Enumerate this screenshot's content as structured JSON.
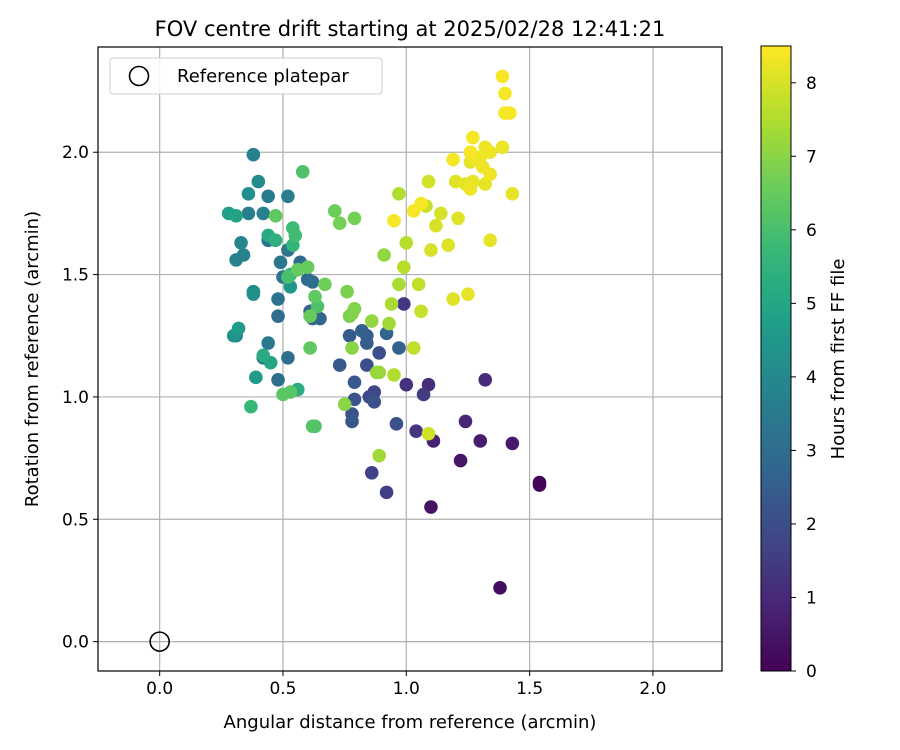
{
  "chart_data": {
    "type": "scatter",
    "title": "FOV centre drift starting at 2025/02/28 12:41:21",
    "xlabel": "Angular distance from reference (arcmin)",
    "ylabel": "Rotation from reference (arcmin)",
    "xlim": [
      -0.25,
      2.28
    ],
    "ylim": [
      -0.12,
      2.43
    ],
    "xticks": [
      0.0,
      0.5,
      1.0,
      1.5,
      2.0
    ],
    "yticks": [
      0.0,
      0.5,
      1.0,
      1.5,
      2.0
    ],
    "xtick_labels": [
      "0.0",
      "0.5",
      "1.0",
      "1.5",
      "2.0"
    ],
    "ytick_labels": [
      "0.0",
      "0.5",
      "1.0",
      "1.5",
      "2.0"
    ],
    "grid": true,
    "legend": {
      "position": "top-left",
      "entries": [
        "Reference platepar"
      ]
    },
    "reference_point": {
      "x": 0.0,
      "y": 0.0,
      "label": "Reference platepar"
    },
    "colorbar": {
      "label": "Hours from first FF file",
      "colormap": "viridis",
      "range": [
        0,
        8.5
      ],
      "ticks": [
        0,
        1,
        2,
        3,
        4,
        5,
        6,
        7,
        8
      ],
      "tick_labels": [
        "0",
        "1",
        "2",
        "3",
        "4",
        "5",
        "6",
        "7",
        "8"
      ]
    },
    "point_fields": [
      "x",
      "y",
      "hours"
    ],
    "points": [
      [
        1.54,
        0.65,
        0.05
      ],
      [
        1.54,
        0.64,
        0.1
      ],
      [
        1.38,
        0.22,
        0.3
      ],
      [
        1.1,
        0.55,
        0.4
      ],
      [
        1.22,
        0.74,
        0.5
      ],
      [
        1.43,
        0.81,
        0.6
      ],
      [
        1.3,
        0.82,
        0.7
      ],
      [
        1.11,
        0.82,
        0.8
      ],
      [
        1.24,
        0.9,
        0.9
      ],
      [
        1.32,
        1.07,
        1.0
      ],
      [
        1.09,
        1.05,
        1.1
      ],
      [
        1.0,
        1.05,
        1.2
      ],
      [
        1.04,
        0.86,
        1.3
      ],
      [
        0.99,
        1.38,
        1.4
      ],
      [
        1.07,
        1.01,
        1.5
      ],
      [
        0.92,
        0.61,
        1.6
      ],
      [
        0.86,
        0.69,
        1.7
      ],
      [
        0.87,
        1.02,
        1.8
      ],
      [
        0.85,
        1.0,
        1.9
      ],
      [
        0.89,
        1.18,
        2.0
      ],
      [
        0.84,
        1.13,
        2.0
      ],
      [
        0.96,
        0.89,
        2.1
      ],
      [
        0.87,
        0.98,
        2.1
      ],
      [
        0.79,
        0.99,
        2.2
      ],
      [
        0.78,
        0.93,
        2.2
      ],
      [
        0.78,
        0.9,
        2.3
      ],
      [
        0.79,
        1.06,
        2.3
      ],
      [
        0.73,
        1.13,
        2.4
      ],
      [
        0.77,
        1.25,
        2.4
      ],
      [
        0.84,
        1.25,
        2.5
      ],
      [
        0.84,
        1.22,
        2.5
      ],
      [
        0.82,
        1.27,
        2.6
      ],
      [
        0.97,
        1.2,
        2.6
      ],
      [
        0.92,
        1.26,
        2.7
      ],
      [
        0.61,
        1.35,
        2.7
      ],
      [
        0.62,
        1.32,
        2.8
      ],
      [
        0.65,
        1.32,
        2.8
      ],
      [
        0.6,
        1.48,
        2.9
      ],
      [
        0.57,
        1.55,
        2.9
      ],
      [
        0.62,
        1.47,
        3.0
      ],
      [
        0.48,
        1.33,
        3.0
      ],
      [
        0.48,
        1.07,
        3.1
      ],
      [
        0.52,
        1.16,
        3.1
      ],
      [
        0.48,
        1.4,
        3.2
      ],
      [
        0.5,
        1.49,
        3.2
      ],
      [
        0.52,
        1.6,
        3.3
      ],
      [
        0.44,
        1.64,
        3.3
      ],
      [
        0.49,
        1.55,
        3.4
      ],
      [
        0.44,
        1.22,
        3.4
      ],
      [
        0.42,
        1.16,
        3.5
      ],
      [
        0.44,
        1.82,
        3.5
      ],
      [
        0.52,
        1.82,
        3.6
      ],
      [
        0.36,
        1.75,
        3.6
      ],
      [
        0.38,
        1.99,
        3.7
      ],
      [
        0.42,
        1.75,
        3.7
      ],
      [
        0.34,
        1.58,
        3.8
      ],
      [
        0.31,
        1.56,
        3.8
      ],
      [
        0.33,
        1.63,
        3.9
      ],
      [
        0.31,
        1.25,
        3.9
      ],
      [
        0.38,
        1.43,
        4.0
      ],
      [
        0.4,
        1.88,
        4.1
      ],
      [
        0.36,
        1.83,
        4.2
      ],
      [
        0.38,
        1.42,
        4.3
      ],
      [
        0.3,
        1.25,
        4.4
      ],
      [
        0.53,
        1.45,
        4.5
      ],
      [
        0.39,
        1.08,
        4.6
      ],
      [
        0.32,
        1.28,
        4.7
      ],
      [
        0.28,
        1.75,
        4.8
      ],
      [
        0.31,
        1.74,
        4.9
      ],
      [
        0.45,
        1.14,
        5.0
      ],
      [
        0.44,
        1.66,
        5.1
      ],
      [
        0.42,
        1.17,
        5.2
      ],
      [
        0.56,
        1.03,
        5.3
      ],
      [
        0.47,
        1.64,
        5.4
      ],
      [
        0.53,
        1.5,
        5.5
      ],
      [
        0.54,
        1.62,
        5.6
      ],
      [
        0.37,
        0.96,
        5.7
      ],
      [
        0.54,
        1.69,
        5.8
      ],
      [
        0.55,
        1.66,
        5.9
      ],
      [
        0.52,
        1.49,
        6.0
      ],
      [
        0.58,
        1.92,
        6.1
      ],
      [
        0.64,
        1.37,
        6.1
      ],
      [
        0.62,
        0.88,
        6.2
      ],
      [
        0.63,
        0.88,
        6.2
      ],
      [
        0.53,
        1.02,
        6.3
      ],
      [
        0.5,
        1.01,
        6.3
      ],
      [
        0.63,
        1.41,
        6.4
      ],
      [
        0.61,
        1.2,
        6.4
      ],
      [
        0.47,
        1.74,
        6.4
      ],
      [
        0.56,
        1.52,
        6.5
      ],
      [
        0.6,
        1.53,
        6.5
      ],
      [
        0.61,
        1.33,
        6.5
      ],
      [
        0.67,
        1.46,
        6.6
      ],
      [
        0.71,
        1.76,
        6.6
      ],
      [
        0.73,
        1.71,
        6.7
      ],
      [
        0.79,
        1.73,
        6.7
      ],
      [
        0.76,
        1.43,
        6.8
      ],
      [
        0.77,
        1.33,
        6.8
      ],
      [
        0.79,
        1.36,
        6.9
      ],
      [
        0.78,
        1.34,
        6.9
      ],
      [
        0.78,
        1.2,
        7.0
      ],
      [
        0.75,
        0.97,
        7.0
      ],
      [
        0.86,
        1.31,
        7.1
      ],
      [
        0.91,
        1.58,
        7.1
      ],
      [
        0.88,
        1.1,
        7.2
      ],
      [
        0.89,
        1.1,
        7.2
      ],
      [
        0.89,
        0.76,
        7.3
      ],
      [
        0.93,
        1.3,
        7.3
      ],
      [
        0.94,
        1.38,
        7.4
      ],
      [
        0.97,
        1.46,
        7.4
      ],
      [
        0.95,
        1.09,
        7.5
      ],
      [
        0.97,
        1.83,
        7.5
      ],
      [
        0.99,
        1.53,
        7.6
      ],
      [
        1.0,
        1.63,
        7.6
      ],
      [
        1.03,
        1.2,
        7.7
      ],
      [
        1.05,
        1.46,
        7.7
      ],
      [
        1.06,
        1.35,
        7.8
      ],
      [
        1.08,
        1.78,
        7.8
      ],
      [
        1.09,
        1.88,
        7.9
      ],
      [
        1.09,
        0.85,
        7.9
      ],
      [
        1.1,
        1.6,
        8.0
      ],
      [
        1.12,
        1.7,
        8.0
      ],
      [
        1.14,
        1.75,
        8.0
      ],
      [
        1.17,
        1.62,
        8.1
      ],
      [
        1.19,
        1.4,
        8.1
      ],
      [
        1.2,
        1.88,
        8.1
      ],
      [
        1.21,
        1.73,
        8.1
      ],
      [
        1.25,
        1.42,
        8.2
      ],
      [
        1.34,
        1.64,
        8.2
      ],
      [
        1.43,
        1.83,
        8.2
      ],
      [
        1.32,
        1.87,
        8.2
      ],
      [
        1.27,
        1.88,
        8.2
      ],
      [
        1.24,
        1.87,
        8.2
      ],
      [
        1.29,
        1.97,
        8.2
      ],
      [
        1.26,
        1.96,
        8.2
      ],
      [
        1.28,
        1.97,
        8.3
      ],
      [
        1.32,
        2.02,
        8.3
      ],
      [
        1.34,
        1.91,
        8.3
      ],
      [
        1.39,
        2.02,
        8.3
      ],
      [
        1.31,
        1.94,
        8.3
      ],
      [
        1.34,
        2.0,
        8.3
      ],
      [
        1.26,
        1.85,
        8.3
      ],
      [
        1.3,
        1.98,
        8.3
      ],
      [
        1.27,
        2.06,
        8.4
      ],
      [
        1.26,
        2.0,
        8.4
      ],
      [
        1.19,
        1.97,
        8.4
      ],
      [
        1.4,
        2.16,
        8.4
      ],
      [
        1.42,
        2.16,
        8.4
      ],
      [
        1.4,
        2.24,
        8.4
      ],
      [
        1.39,
        2.31,
        8.4
      ],
      [
        0.95,
        1.72,
        8.4
      ],
      [
        1.03,
        1.76,
        8.4
      ],
      [
        1.06,
        1.79,
        8.4
      ]
    ]
  }
}
